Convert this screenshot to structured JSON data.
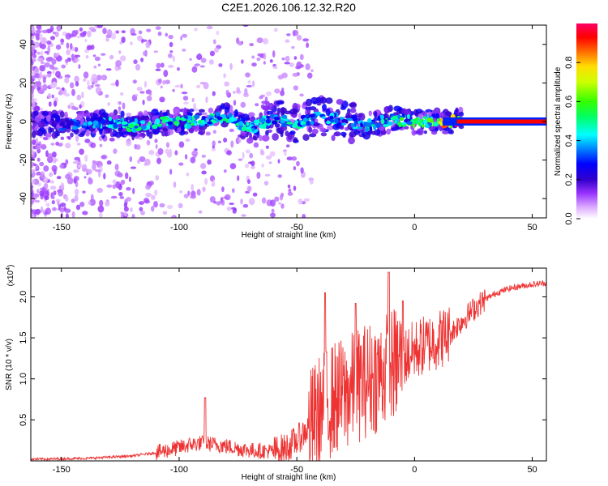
{
  "title": "C2E1.2026.106.12.32.R20",
  "chart_data": [
    {
      "type": "heatmap",
      "name": "spectrogram",
      "xlabel": "Height of straight line (km)",
      "ylabel": "Frequency (Hz)",
      "xlim": [
        -163,
        56
      ],
      "ylim": [
        -50,
        50
      ],
      "xticks": [
        -150,
        -100,
        -50,
        0,
        50
      ],
      "yticks": [
        -40,
        -20,
        0,
        20,
        40
      ],
      "colorbar": {
        "label": "Normalized spectral amplitude",
        "range": [
          0,
          1
        ],
        "ticks": [
          0.0,
          0.2,
          0.4,
          0.6,
          0.8
        ],
        "colors": [
          "#ffffff",
          "#cc88ff",
          "#6600cc",
          "#0000ff",
          "#00ffff",
          "#00ff00",
          "#ffff00",
          "#ff0000",
          "#ff0066"
        ]
      },
      "ridge": [
        {
          "x": -160,
          "f": -1,
          "a": 0.22
        },
        {
          "x": -150,
          "f": -2,
          "a": 0.3
        },
        {
          "x": -140,
          "f": -1,
          "a": 0.3
        },
        {
          "x": -130,
          "f": -1,
          "a": 0.38
        },
        {
          "x": -120,
          "f": -2,
          "a": 0.45
        },
        {
          "x": -110,
          "f": -1,
          "a": 0.45
        },
        {
          "x": -100,
          "f": 0,
          "a": 0.45
        },
        {
          "x": -90,
          "f": 0,
          "a": 0.42
        },
        {
          "x": -80,
          "f": 3,
          "a": 0.4
        },
        {
          "x": -70,
          "f": -4,
          "a": 0.38
        },
        {
          "x": -60,
          "f": 2,
          "a": 0.4
        },
        {
          "x": -50,
          "f": -1,
          "a": 0.4
        },
        {
          "x": -40,
          "f": 3,
          "a": 0.38
        },
        {
          "x": -30,
          "f": 0,
          "a": 0.35
        },
        {
          "x": -20,
          "f": -2,
          "a": 0.4
        },
        {
          "x": -10,
          "f": 1,
          "a": 0.45
        },
        {
          "x": 0,
          "f": 0,
          "a": 0.5
        },
        {
          "x": 10,
          "f": 0,
          "a": 0.6
        },
        {
          "x": 20,
          "f": 0,
          "a": 0.95
        },
        {
          "x": 55,
          "f": 0,
          "a": 0.95
        }
      ]
    },
    {
      "type": "line",
      "name": "snr",
      "xlabel": "Height of straight line (km)",
      "ylabel": "SNR (10 * v/v)",
      "multiplier": "(x10",
      "multiplier_exp": "4",
      "xlim": [
        -163,
        56
      ],
      "ylim": [
        0,
        2.35
      ],
      "xticks": [
        -150,
        -100,
        -50,
        0,
        50
      ],
      "yticks": [
        0.5,
        1.0,
        1.5,
        2.0
      ],
      "ytick_labels": [
        "0.5",
        "1.0",
        "1.5",
        "2.0"
      ],
      "color": "#ee3333",
      "series": [
        {
          "name": "SNR",
          "x": [
            -163,
            -140,
            -120,
            -110,
            -100,
            -95,
            -90,
            -85,
            -80,
            -75,
            -70,
            -65,
            -60,
            -55,
            -50,
            -45,
            -40,
            -35,
            -30,
            -25,
            -20,
            -15,
            -10,
            -5,
            0,
            5,
            10,
            15,
            20,
            25,
            30,
            35,
            40,
            45,
            50,
            56
          ],
          "y": [
            0.02,
            0.03,
            0.06,
            0.1,
            0.16,
            0.2,
            0.22,
            0.2,
            0.18,
            0.15,
            0.13,
            0.12,
            0.12,
            0.15,
            0.25,
            0.4,
            0.6,
            0.75,
            0.8,
            0.9,
            1.0,
            1.05,
            1.15,
            1.25,
            1.35,
            1.42,
            1.48,
            1.55,
            1.7,
            1.85,
            1.97,
            2.05,
            2.1,
            2.13,
            2.15,
            2.17
          ]
        }
      ],
      "peaks": [
        {
          "x": -89,
          "y": 0.77
        },
        {
          "x": -38,
          "y": 2.05
        },
        {
          "x": -25,
          "y": 1.92
        },
        {
          "x": -11,
          "y": 2.3
        },
        {
          "x": -5,
          "y": 1.95
        }
      ]
    }
  ]
}
